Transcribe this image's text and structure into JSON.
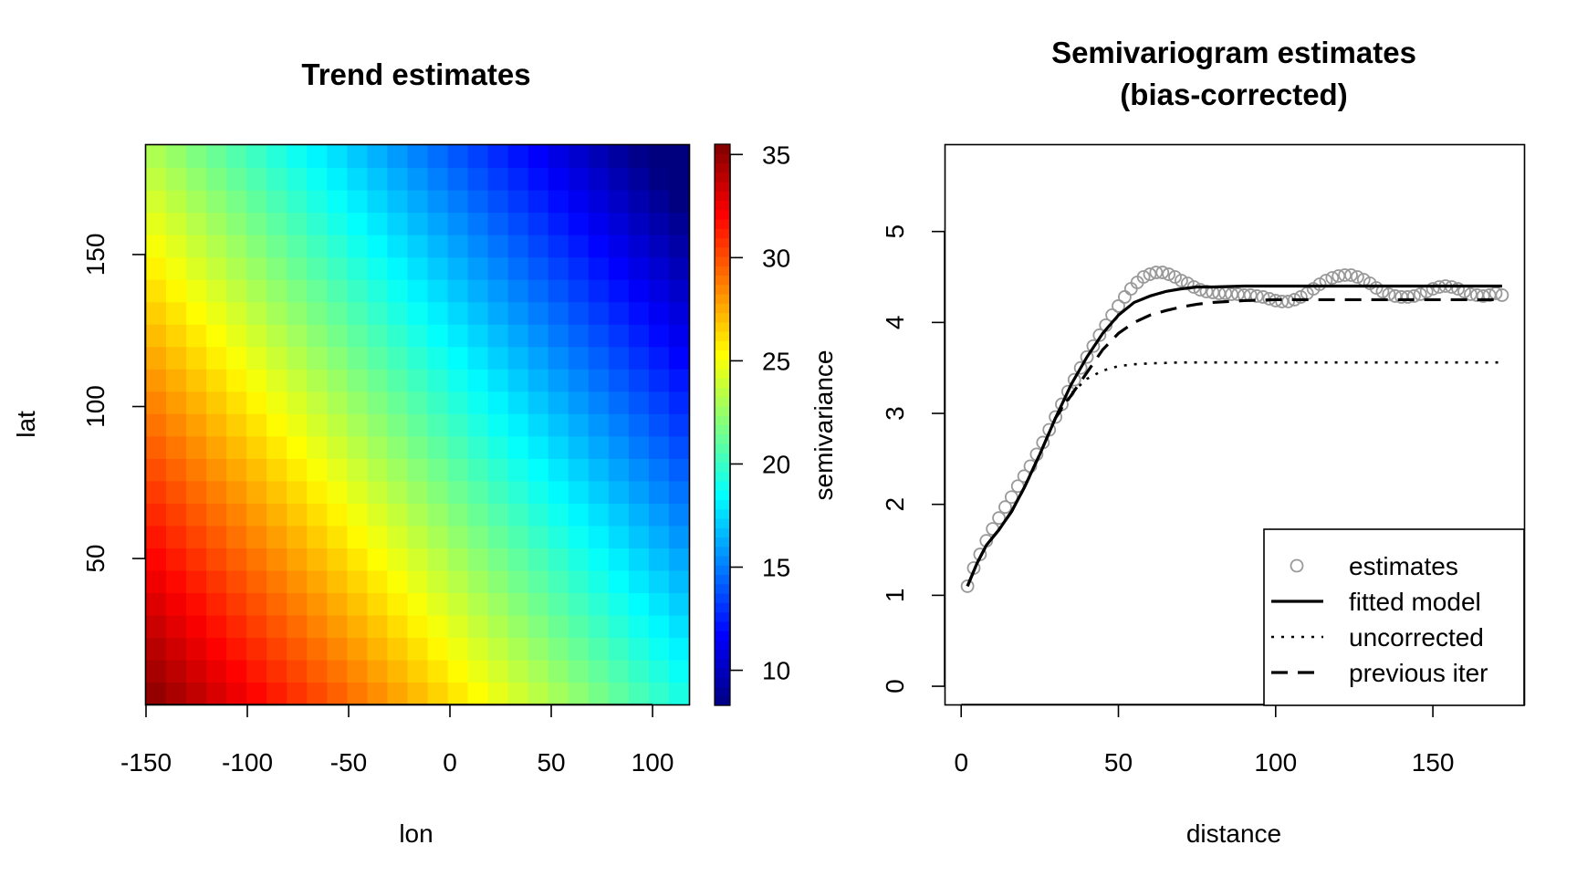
{
  "chart_data": [
    {
      "type": "heatmap",
      "title": "Trend estimates",
      "xlabel": "lon",
      "ylabel": "lat",
      "xlim": [
        -150,
        118
      ],
      "ylim": [
        2,
        186
      ],
      "xticks": [
        "-150",
        "-100",
        "-50",
        "0",
        "50",
        "100"
      ],
      "yticks": [
        "50",
        "100",
        "150"
      ],
      "grid": {
        "cols": 27,
        "rows": 25
      },
      "surface": {
        "form": "linear",
        "value_at_lon_-150_lat_2": 35.5,
        "d_per_lon": -0.061,
        "d_per_lat": -0.067
      },
      "colorbar": {
        "label": "semivariance",
        "range": [
          8.3,
          35.5
        ],
        "ticks": [
          "10",
          "15",
          "20",
          "25",
          "30",
          "35"
        ],
        "colors": [
          "#00007f",
          "#0000ff",
          "#007fff",
          "#00ffff",
          "#7fff7f",
          "#ffff00",
          "#ff7f00",
          "#ff0000",
          "#7f0000"
        ]
      }
    },
    {
      "type": "scatter",
      "title": "Semivariogram estimates\n(bias-corrected)",
      "title_lines": [
        "Semivariogram estimates",
        "(bias-corrected)"
      ],
      "xlabel": "distance",
      "ylabel": "",
      "xlim": [
        -5,
        179
      ],
      "ylim": [
        -0.2,
        5.95
      ],
      "xticks": [
        "0",
        "50",
        "100",
        "150"
      ],
      "yticks": [
        "0",
        "1",
        "2",
        "3",
        "4",
        "5"
      ],
      "legend": {
        "placement": "bottom-right",
        "entries": [
          "estimates",
          "fitted model",
          "uncorrected",
          "previous iter"
        ]
      },
      "series": [
        {
          "name": "estimates",
          "style": "open-circle",
          "color": "#999999",
          "x": [
            2,
            4,
            6,
            8,
            10,
            12,
            14,
            16,
            18,
            20,
            22,
            24,
            26,
            28,
            30,
            32,
            34,
            36,
            38,
            40,
            42,
            44,
            46,
            48,
            50,
            52,
            54,
            56,
            58,
            60,
            62,
            64,
            66,
            68,
            70,
            72,
            74,
            76,
            78,
            80,
            82,
            84,
            86,
            88,
            90,
            92,
            94,
            96,
            98,
            100,
            102,
            104,
            106,
            108,
            110,
            112,
            114,
            116,
            118,
            120,
            122,
            124,
            126,
            128,
            130,
            132,
            134,
            136,
            138,
            140,
            142,
            144,
            146,
            148,
            150,
            152,
            154,
            156,
            158,
            160,
            162,
            164,
            166,
            168,
            170,
            172
          ],
          "y": [
            1.1,
            1.3,
            1.45,
            1.6,
            1.73,
            1.85,
            1.97,
            2.08,
            2.2,
            2.31,
            2.42,
            2.55,
            2.68,
            2.82,
            2.96,
            3.1,
            3.24,
            3.37,
            3.5,
            3.62,
            3.74,
            3.86,
            3.97,
            4.08,
            4.18,
            4.28,
            4.37,
            4.44,
            4.5,
            4.53,
            4.55,
            4.55,
            4.53,
            4.5,
            4.46,
            4.43,
            4.39,
            4.36,
            4.34,
            4.33,
            4.32,
            4.32,
            4.31,
            4.31,
            4.3,
            4.3,
            4.29,
            4.28,
            4.26,
            4.24,
            4.23,
            4.23,
            4.25,
            4.28,
            4.32,
            4.37,
            4.42,
            4.46,
            4.49,
            4.51,
            4.52,
            4.52,
            4.5,
            4.47,
            4.43,
            4.38,
            4.34,
            4.31,
            4.29,
            4.28,
            4.28,
            4.29,
            4.31,
            4.34,
            4.37,
            4.39,
            4.4,
            4.39,
            4.37,
            4.34,
            4.31,
            4.3,
            4.29,
            4.3,
            4.32,
            4.3
          ]
        },
        {
          "name": "fitted model",
          "style": "solid",
          "x": [
            2,
            5,
            8,
            12,
            16,
            20,
            25,
            30,
            35,
            40,
            45,
            50,
            55,
            60,
            65,
            70,
            75,
            80,
            90,
            100,
            120,
            140,
            160,
            172
          ],
          "y": [
            1.1,
            1.35,
            1.55,
            1.72,
            1.92,
            2.18,
            2.55,
            2.95,
            3.32,
            3.62,
            3.88,
            4.08,
            4.22,
            4.29,
            4.34,
            4.37,
            4.39,
            4.39,
            4.4,
            4.4,
            4.4,
            4.4,
            4.4,
            4.4
          ]
        },
        {
          "name": "uncorrected",
          "style": "dotted",
          "x": [
            2,
            5,
            8,
            12,
            16,
            20,
            25,
            30,
            35,
            40,
            45,
            50,
            55,
            60,
            70,
            80,
            100,
            130,
            160,
            172
          ],
          "y": [
            1.1,
            1.35,
            1.55,
            1.72,
            1.92,
            2.18,
            2.55,
            2.95,
            3.22,
            3.38,
            3.47,
            3.52,
            3.54,
            3.55,
            3.56,
            3.56,
            3.56,
            3.56,
            3.56,
            3.56
          ]
        },
        {
          "name": "previous iter",
          "style": "dashed",
          "x": [
            2,
            5,
            8,
            12,
            16,
            20,
            25,
            30,
            35,
            40,
            45,
            50,
            55,
            60,
            65,
            70,
            75,
            80,
            90,
            100,
            120,
            140,
            160,
            172
          ],
          "y": [
            1.1,
            1.35,
            1.55,
            1.72,
            1.92,
            2.18,
            2.55,
            2.95,
            3.2,
            3.45,
            3.7,
            3.88,
            4.0,
            4.08,
            4.13,
            4.17,
            4.2,
            4.22,
            4.24,
            4.25,
            4.25,
            4.25,
            4.25,
            4.25
          ]
        }
      ]
    }
  ]
}
